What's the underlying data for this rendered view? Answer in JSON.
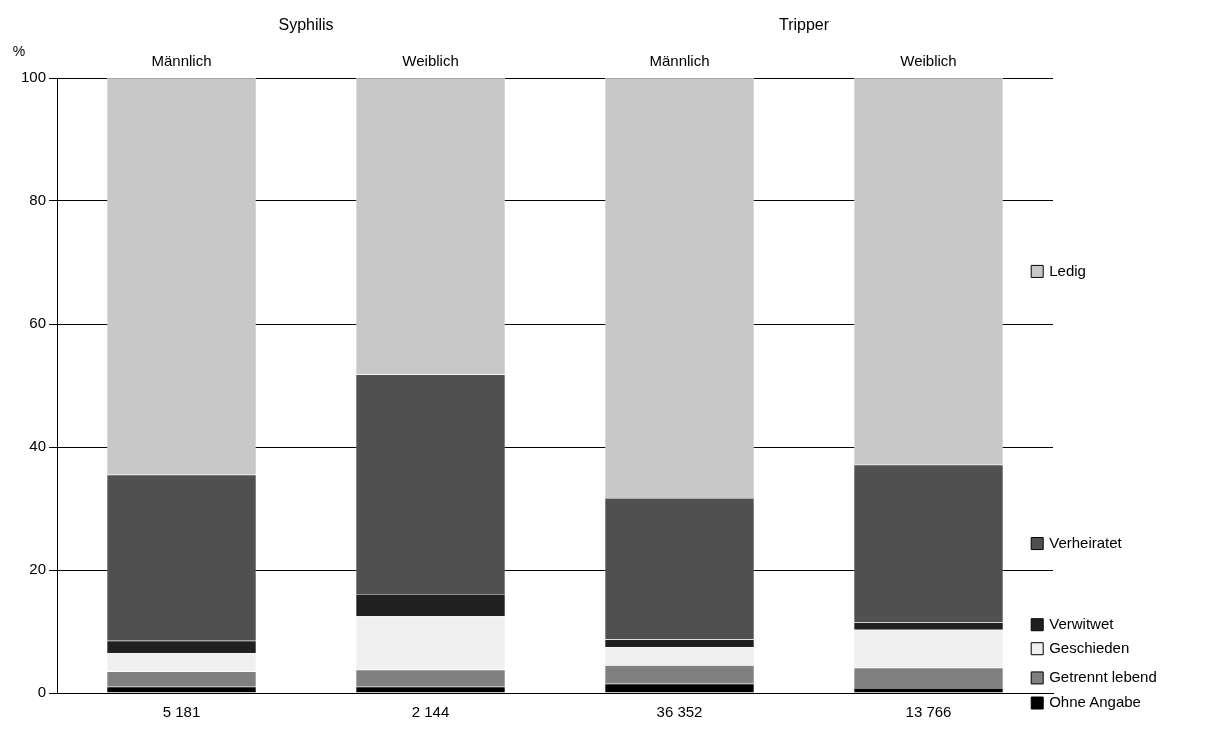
{
  "chart_data": {
    "type": "bar",
    "stacked": true,
    "ylabel": "%",
    "categories": [
      "5 181",
      "2 144",
      "36 352",
      "13 766"
    ],
    "series": [
      {
        "name": "Ohne Angabe",
        "color": "#000000",
        "values": [
          1.0,
          1.0,
          1.5,
          0.8
        ]
      },
      {
        "name": "Getrennt lebend",
        "color": "#808080",
        "values": [
          2.5,
          2.8,
          3.0,
          3.3
        ]
      },
      {
        "name": "Geschieden",
        "color": "#f0f0f0",
        "values": [
          3.0,
          8.7,
          3.0,
          6.2
        ]
      },
      {
        "name": "Verwitwet",
        "color": "#202020",
        "values": [
          2.0,
          3.6,
          1.2,
          1.2
        ]
      },
      {
        "name": "Verheiratet",
        "color": "#505050",
        "values": [
          27.0,
          35.7,
          23.0,
          25.6
        ]
      },
      {
        "name": "Ledig",
        "color": "#c8c8c8",
        "values": [
          64.5,
          48.2,
          68.3,
          62.9
        ]
      }
    ],
    "ylim": [
      0,
      100
    ],
    "yticks": [
      0,
      20,
      40,
      60,
      80,
      100
    ],
    "grid": "y",
    "annotations": [
      "Syphilis",
      "Tripper",
      "Männlich",
      "Weiblich",
      "Männlich",
      "Weiblich"
    ],
    "legend": "right"
  }
}
